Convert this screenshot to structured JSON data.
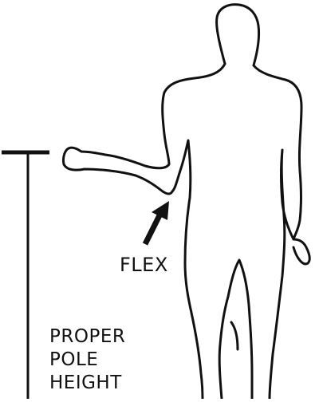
{
  "diagram": {
    "annotations": {
      "flex": "FLEX",
      "pole_height": [
        "PROPER",
        "POLE",
        "HEIGHT"
      ]
    },
    "colors": {
      "ink": "#111111",
      "background": "#ffffff"
    }
  }
}
